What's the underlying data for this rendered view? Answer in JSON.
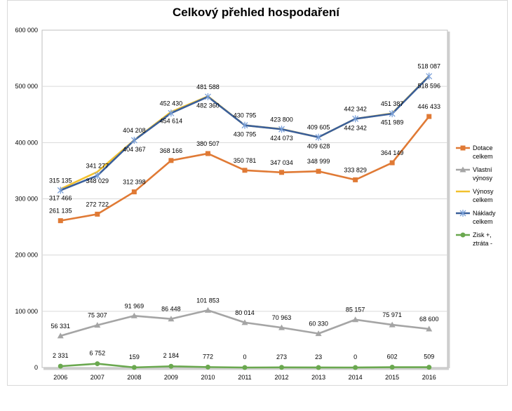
{
  "chart_data": {
    "type": "line",
    "title": "Celkový přehled hospodaření",
    "xlabel": "",
    "ylabel": "",
    "x": [
      "2006",
      "2007",
      "2008",
      "2009",
      "2010",
      "2011",
      "2012",
      "2013",
      "2014",
      "2015",
      "2016"
    ],
    "ylim": [
      0,
      600000
    ],
    "yticks": [
      "0",
      "100 000",
      "200 000",
      "300 000",
      "400 000",
      "500 000",
      "600 000"
    ],
    "grid": "horizontal",
    "legend_position": "right",
    "series": [
      {
        "name": "Dotace celkem",
        "color": "#e07a35",
        "marker": "square",
        "values": [
          261135,
          272722,
          312398,
          368166,
          380507,
          350781,
          347034,
          348999,
          333829,
          364149,
          446433
        ],
        "labels": [
          "261 135",
          "272 722",
          "312 398",
          "368 166",
          "380 507",
          "350 781",
          "347 034",
          "348 999",
          "333 829",
          "364 149",
          "446 433"
        ]
      },
      {
        "name": "Vlastní výnosy",
        "color": "#a5a5a5",
        "marker": "triangle",
        "values": [
          56331,
          75307,
          91969,
          86448,
          101853,
          80014,
          70963,
          60330,
          85157,
          75971,
          68600
        ],
        "labels": [
          "56 331",
          "75 307",
          "91 969",
          "86 448",
          "101 853",
          "80 014",
          "70 963",
          "60 330",
          "85 157",
          "75 971",
          "68 600"
        ]
      },
      {
        "name": "Výnosy celkem",
        "color": "#f2c12e",
        "marker": "none",
        "values": [
          317466,
          348029,
          404367,
          454614,
          482360,
          430795,
          424073,
          409628,
          442342,
          451989,
          518596
        ],
        "labels": [
          "317 466",
          "348 029",
          "404 367",
          "454 614",
          "482 360",
          "430 795",
          "424 073",
          "409 628",
          "442 342",
          "451 989",
          "518 596"
        ]
      },
      {
        "name": "Náklady celkem",
        "color": "#3a5f9a",
        "marker": "star",
        "values": [
          315135,
          341277,
          404208,
          452430,
          481588,
          430795,
          423800,
          409605,
          442342,
          451387,
          518087
        ],
        "labels": [
          "315 135",
          "341 277",
          "404 208",
          "452 430",
          "481 588",
          "430 795",
          "423 800",
          "409 605",
          "442 342",
          "451 387",
          "518 087"
        ]
      },
      {
        "name": "Zisk +, ztráta -",
        "color": "#6aa84f",
        "marker": "circle",
        "values": [
          2331,
          6752,
          159,
          2184,
          772,
          0,
          273,
          23,
          0,
          602,
          509
        ],
        "labels": [
          "2 331",
          "6 752",
          "159",
          "2 184",
          "772",
          "0",
          "273",
          "23",
          "0",
          "602",
          "509"
        ]
      }
    ],
    "legend": [
      [
        "Dotace",
        "celkem"
      ],
      [
        "Vlastní",
        "výnosy"
      ],
      [
        "Výnosy",
        "celkem"
      ],
      [
        "Náklady",
        "celkem"
      ],
      [
        "Zisk +,",
        "ztráta -"
      ]
    ]
  }
}
